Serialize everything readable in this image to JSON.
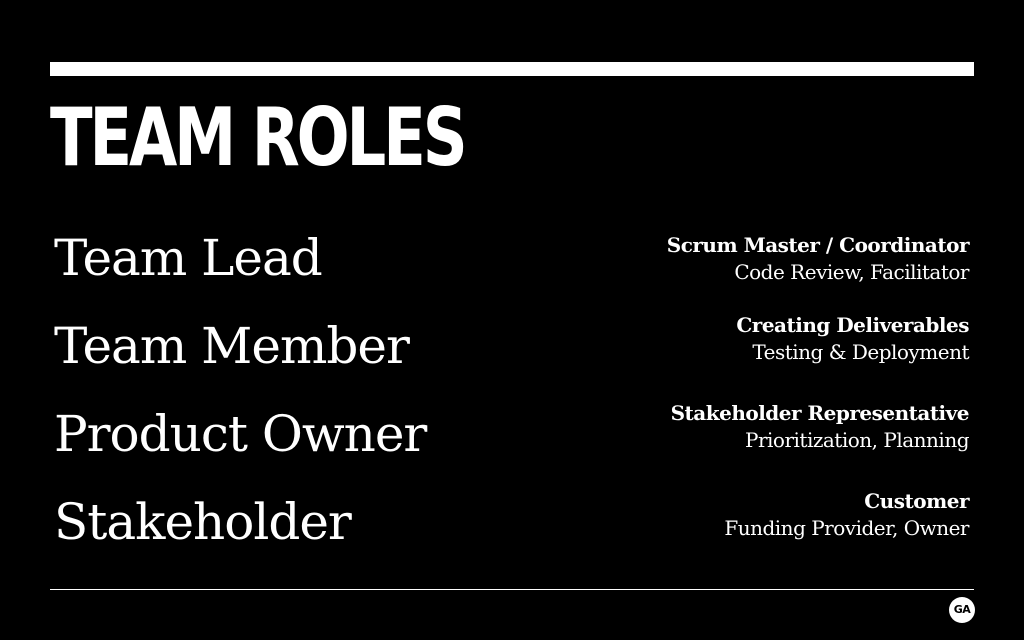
{
  "slide": {
    "title": "TEAM ROLES",
    "background_color": "#000000",
    "foreground_color": "#ffffff",
    "roles": [
      {
        "name": "Team Lead",
        "primary": "Scrum Master / Coordinator",
        "secondary": "Code Review, Facilitator"
      },
      {
        "name": "Team Member",
        "primary": "Creating Deliverables",
        "secondary": "Testing & Deployment"
      },
      {
        "name": "Product Owner",
        "primary": "Stakeholder Representative",
        "secondary": "Prioritization, Planning"
      },
      {
        "name": "Stakeholder",
        "primary": "Customer",
        "secondary": "Funding Provider, Owner"
      }
    ],
    "logo": {
      "text": "GA",
      "icon": "ga-logo-icon"
    }
  }
}
